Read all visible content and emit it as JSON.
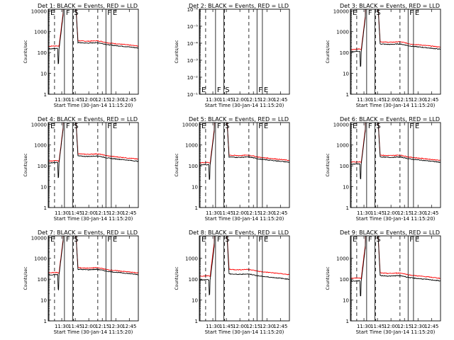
{
  "chart_data": {
    "type": "line",
    "xlabel": "Start Time (30-Jan-14 11:15:20)",
    "ylabel": "Counts/sec",
    "xtick_labels": [
      "11:30",
      "11:45",
      "12:00",
      "12:15",
      "12:30",
      "12:45"
    ],
    "xticks_min": [
      15,
      30,
      45,
      60,
      75,
      90
    ],
    "xlim_min": [
      0,
      100
    ],
    "ylim": [
      1,
      12000
    ],
    "yscale": "log",
    "ytick_labels": [
      "1",
      "10",
      "100",
      "1000",
      "10000"
    ],
    "grid": false,
    "series_colors": {
      "events": "#000000",
      "lld": "#ff0000"
    },
    "marker_labels": [
      "E",
      "F",
      "S",
      "F",
      "E"
    ],
    "marker_x_min": [
      0,
      18,
      27,
      64,
      70
    ],
    "dashed_x_min": [
      7,
      28,
      55
    ],
    "panels": [
      {
        "title": "Det 1: BLACK = Events, RED = LLD",
        "has_data": true,
        "ytick_labels": [
          "1",
          "10",
          "100",
          "1000",
          "10000"
        ],
        "events_base": 150,
        "lld_base": 200,
        "events_after": 300,
        "lld_after": 370
      },
      {
        "title": "Det 2: BLACK = Events, RED = LLD",
        "has_data": false,
        "ytick_labels": [
          "10⁻¹",
          "10⁻²",
          "10⁻³",
          "10⁻⁴",
          "10⁻⁵",
          "10⁻⁶"
        ]
      },
      {
        "title": "Det 3: BLACK = Events, RED = LLD",
        "has_data": true,
        "ytick_labels": [
          "1",
          "10",
          "100",
          "1000",
          "10000"
        ],
        "events_base": 110,
        "lld_base": 140,
        "events_after": 260,
        "lld_after": 330
      },
      {
        "title": "Det 4: BLACK = Events, RED = LLD",
        "has_data": true,
        "ytick_labels": [
          "1",
          "10",
          "100",
          "1000",
          "10000"
        ],
        "events_base": 140,
        "lld_base": 170,
        "events_after": 300,
        "lld_after": 380
      },
      {
        "title": "Det 5: BLACK = Events, RED = LLD",
        "has_data": true,
        "ytick_labels": [
          "1",
          "10",
          "100",
          "1000",
          "10000"
        ],
        "events_base": 110,
        "lld_base": 140,
        "events_after": 270,
        "lld_after": 330
      },
      {
        "title": "Det 6: BLACK = Events, RED = LLD",
        "has_data": true,
        "ytick_labels": [
          "1",
          "10",
          "100",
          "1000",
          "10000"
        ],
        "events_base": 120,
        "lld_base": 150,
        "events_after": 270,
        "lld_after": 330
      },
      {
        "title": "Det 7: BLACK = Events, RED = LLD",
        "has_data": true,
        "ytick_labels": [
          "1",
          "10",
          "100",
          "1000",
          "10000"
        ],
        "events_base": 160,
        "lld_base": 200,
        "events_after": 300,
        "lld_after": 360
      },
      {
        "title": "Det 8: BLACK = Events, RED = LLD",
        "has_data": true,
        "ytick_labels": [
          "1",
          "10",
          "100",
          "1000"
        ],
        "events_base": 90,
        "lld_base": 140,
        "events_after": 180,
        "lld_after": 300
      },
      {
        "title": "Det 9: BLACK = Events, RED = LLD",
        "has_data": true,
        "ytick_labels": [
          "1",
          "10",
          "100",
          "1000"
        ],
        "events_base": 80,
        "lld_base": 110,
        "events_after": 150,
        "lld_after": 200
      }
    ]
  }
}
